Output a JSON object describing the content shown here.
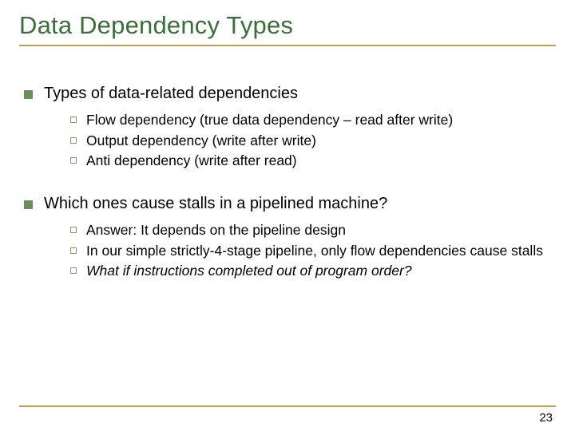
{
  "colors": {
    "title": "#3b6e3b",
    "rule": "#c0a050",
    "lvl1_bullet": "#6b8e5a",
    "lvl2_bullet_border": "#7a9a6a",
    "background": "#ffffff",
    "text": "#000000"
  },
  "typography": {
    "title_fontsize": 31,
    "lvl1_fontsize": 20,
    "lvl2_fontsize": 17.5,
    "font_family": "Verdana"
  },
  "title": "Data Dependency Types",
  "section1": {
    "heading": "Types of data-related dependencies",
    "items": {
      "a": "Flow dependency (true data dependency – read after write)",
      "b": "Output dependency (write after write)",
      "c": "Anti dependency (write after read)"
    }
  },
  "section2": {
    "heading": "Which ones cause stalls in a pipelined machine?",
    "items": {
      "a": "Answer: It depends on the pipeline design",
      "b": "In our simple strictly-4-stage pipeline, only flow dependencies cause stalls",
      "c": "What if instructions completed out of program order?"
    }
  },
  "page_number": "23"
}
